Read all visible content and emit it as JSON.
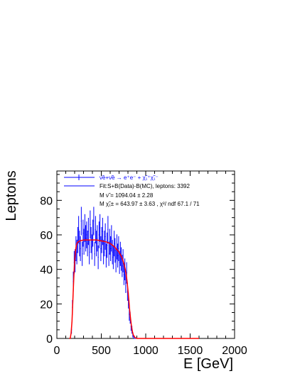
{
  "chart_data": {
    "type": "line",
    "title": "",
    "xlabel": "E [GeV]",
    "ylabel": "Leptons",
    "xlim": [
      0,
      2000
    ],
    "ylim": [
      0,
      97
    ],
    "x_ticks": [
      "0",
      "500",
      "1000",
      "1500",
      "2000"
    ],
    "y_ticks": [
      "0",
      "20",
      "40",
      "60",
      "80"
    ],
    "grid": false,
    "legend_placement": "top",
    "colors": {
      "data": "#0000ff",
      "fit": "#ff0000",
      "axes": "#000000"
    },
    "legend": {
      "entries": [
        {
          "label": "ν̃e+ν̃e → e⁺e⁻ + χ̃₁⁺χ̃₁⁻",
          "color": "#0000ff"
        },
        {
          "label": "Fit:S+B(Data)-B(MC), leptons: 3392",
          "color": "#0000ff"
        }
      ],
      "params": [
        "M ν̃ =   1094.04 ±  2.28",
        "M χ̃₁± =   643.97 ±  3.63 , χ²/ ndf 67.1 / 71"
      ]
    },
    "series": [
      {
        "name": "ν̃e+ν̃e → e⁺e⁻ + χ̃₁⁺χ̃₁⁻",
        "kind": "histogram",
        "x": [
          165,
          175,
          185,
          195,
          205,
          215,
          225,
          235,
          245,
          255,
          265,
          275,
          285,
          295,
          305,
          315,
          325,
          335,
          345,
          355,
          365,
          375,
          385,
          395,
          405,
          415,
          425,
          435,
          445,
          455,
          465,
          475,
          485,
          495,
          505,
          515,
          525,
          535,
          545,
          555,
          565,
          575,
          585,
          595,
          605,
          615,
          625,
          635,
          645,
          655,
          665,
          675,
          685,
          695,
          705,
          715,
          725,
          735,
          745,
          755,
          765,
          775,
          785,
          795,
          805,
          815,
          825,
          835,
          845,
          855,
          865,
          875
        ],
        "values": [
          5,
          18,
          33,
          44,
          45,
          52,
          50,
          57,
          63,
          55,
          52,
          68,
          49,
          61,
          56,
          64,
          58,
          60,
          55,
          62,
          50,
          66,
          57,
          53,
          61,
          68,
          49,
          63,
          55,
          58,
          47,
          60,
          64,
          52,
          57,
          62,
          50,
          55,
          59,
          48,
          54,
          63,
          49,
          56,
          52,
          58,
          50,
          47,
          55,
          51,
          45,
          53,
          48,
          52,
          44,
          49,
          46,
          42,
          45,
          37,
          40,
          32,
          38,
          27,
          22,
          14,
          12,
          7,
          5,
          2,
          1,
          0
        ]
      },
      {
        "name": "Fit:S+B(Data)-B(MC), leptons: 3392",
        "kind": "curve",
        "x": [
          140,
          150,
          160,
          170,
          180,
          190,
          200,
          210,
          220,
          230,
          240,
          260,
          300,
          350,
          400,
          450,
          500,
          550,
          600,
          650,
          700,
          730,
          750,
          770,
          780,
          790,
          800,
          810,
          820,
          830,
          840,
          850,
          860,
          880,
          900,
          1000,
          1200,
          1400,
          1600
        ],
        "values": [
          0,
          0,
          3,
          10,
          22,
          35,
          45,
          51,
          54,
          55.5,
          56,
          56.5,
          57,
          57,
          57,
          57,
          56.5,
          56,
          55,
          53,
          50,
          47,
          44,
          40,
          37,
          33,
          28,
          22,
          16,
          11,
          7,
          4,
          2,
          0.5,
          0,
          0,
          0,
          0,
          0
        ]
      }
    ]
  }
}
